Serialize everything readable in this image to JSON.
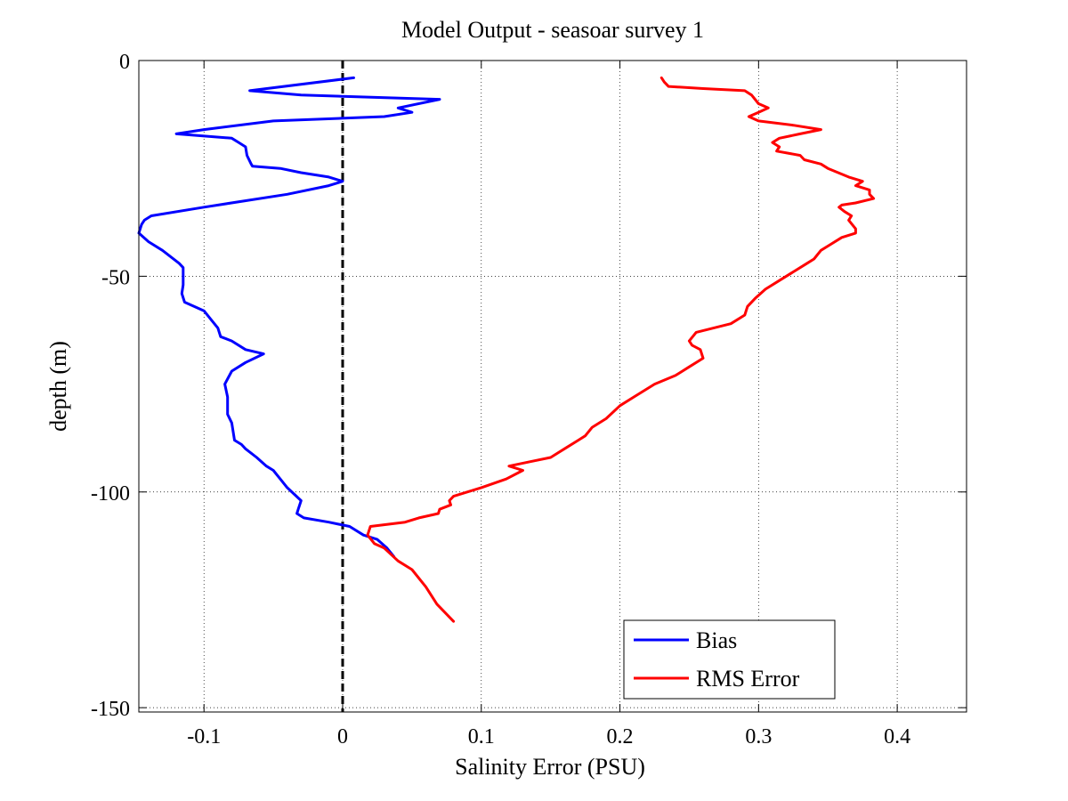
{
  "chart_data": {
    "type": "line",
    "title": "Model Output - seasoar survey 1",
    "xlabel": "Salinity Error  (PSU)",
    "ylabel": "depth (m)",
    "xlim": [
      -0.147,
      0.45
    ],
    "ylim": [
      -151,
      0
    ],
    "xticks": [
      -0.1,
      0,
      0.1,
      0.2,
      0.3,
      0.4
    ],
    "xtick_labels": [
      "-0.1",
      "0",
      "0.1",
      "0.2",
      "0.3",
      "0.4"
    ],
    "yticks": [
      0,
      -50,
      -100,
      -150
    ],
    "ytick_labels": [
      "0",
      "-50",
      "-100",
      "-150"
    ],
    "grid": true,
    "legend_position": "bottom-right",
    "zero_line": {
      "x": 0,
      "style": "dashed",
      "color": "#000000"
    },
    "series": [
      {
        "name": "Bias",
        "color": "#0000ff",
        "points": [
          [
            0.008,
            -4
          ],
          [
            -0.067,
            -7
          ],
          [
            -0.03,
            -8
          ],
          [
            0.07,
            -9
          ],
          [
            0.04,
            -11
          ],
          [
            0.05,
            -12
          ],
          [
            0.03,
            -13
          ],
          [
            -0.05,
            -14
          ],
          [
            -0.1,
            -16
          ],
          [
            -0.12,
            -17
          ],
          [
            -0.08,
            -18
          ],
          [
            -0.075,
            -19
          ],
          [
            -0.07,
            -20
          ],
          [
            -0.069,
            -22
          ],
          [
            -0.066,
            -24
          ],
          [
            -0.065,
            -24.5
          ],
          [
            -0.045,
            -25
          ],
          [
            -0.03,
            -26
          ],
          [
            -0.01,
            -27
          ],
          [
            0,
            -28
          ],
          [
            -0.01,
            -29
          ],
          [
            -0.04,
            -31
          ],
          [
            -0.1,
            -34
          ],
          [
            -0.138,
            -36
          ],
          [
            -0.143,
            -37
          ],
          [
            -0.145,
            -38
          ],
          [
            -0.147,
            -40
          ],
          [
            -0.14,
            -42
          ],
          [
            -0.13,
            -44
          ],
          [
            -0.118,
            -47
          ],
          [
            -0.115,
            -48
          ],
          [
            -0.115,
            -52
          ],
          [
            -0.116,
            -54
          ],
          [
            -0.114,
            -56
          ],
          [
            -0.1,
            -58
          ],
          [
            -0.095,
            -60
          ],
          [
            -0.09,
            -62
          ],
          [
            -0.088,
            -64
          ],
          [
            -0.08,
            -65
          ],
          [
            -0.07,
            -67
          ],
          [
            -0.057,
            -68
          ],
          [
            -0.07,
            -70
          ],
          [
            -0.08,
            -72
          ],
          [
            -0.085,
            -75
          ],
          [
            -0.083,
            -78
          ],
          [
            -0.083,
            -82
          ],
          [
            -0.08,
            -84
          ],
          [
            -0.078,
            -88
          ],
          [
            -0.073,
            -89
          ],
          [
            -0.07,
            -90
          ],
          [
            -0.062,
            -92
          ],
          [
            -0.055,
            -94
          ],
          [
            -0.05,
            -95
          ],
          [
            -0.045,
            -97
          ],
          [
            -0.04,
            -99
          ],
          [
            -0.03,
            -102
          ],
          [
            -0.032,
            -104
          ],
          [
            -0.033,
            -105
          ],
          [
            -0.028,
            -106
          ],
          [
            -0.01,
            -107
          ],
          [
            0.005,
            -108
          ],
          [
            0.015,
            -110
          ],
          [
            0.025,
            -111
          ],
          [
            0.032,
            -113
          ],
          [
            0.037,
            -115
          ]
        ]
      },
      {
        "name": "RMS Error",
        "color": "#ff0000",
        "points": [
          [
            0.23,
            -4
          ],
          [
            0.232,
            -5
          ],
          [
            0.235,
            -6
          ],
          [
            0.26,
            -6.5
          ],
          [
            0.29,
            -7
          ],
          [
            0.295,
            -8
          ],
          [
            0.3,
            -10
          ],
          [
            0.307,
            -11
          ],
          [
            0.3,
            -12
          ],
          [
            0.293,
            -13
          ],
          [
            0.3,
            -14
          ],
          [
            0.325,
            -15
          ],
          [
            0.345,
            -16
          ],
          [
            0.33,
            -17
          ],
          [
            0.315,
            -18
          ],
          [
            0.31,
            -19
          ],
          [
            0.315,
            -20
          ],
          [
            0.313,
            -21
          ],
          [
            0.33,
            -22
          ],
          [
            0.333,
            -23
          ],
          [
            0.345,
            -24
          ],
          [
            0.35,
            -25
          ],
          [
            0.365,
            -27
          ],
          [
            0.375,
            -28
          ],
          [
            0.37,
            -29
          ],
          [
            0.38,
            -30
          ],
          [
            0.38,
            -31
          ],
          [
            0.383,
            -32
          ],
          [
            0.37,
            -33
          ],
          [
            0.36,
            -33.5
          ],
          [
            0.358,
            -34
          ],
          [
            0.362,
            -35
          ],
          [
            0.367,
            -36
          ],
          [
            0.365,
            -37
          ],
          [
            0.37,
            -39
          ],
          [
            0.37,
            -40
          ],
          [
            0.36,
            -41
          ],
          [
            0.35,
            -43
          ],
          [
            0.345,
            -44
          ],
          [
            0.34,
            -46
          ],
          [
            0.335,
            -47
          ],
          [
            0.325,
            -49
          ],
          [
            0.315,
            -51
          ],
          [
            0.305,
            -53
          ],
          [
            0.298,
            -55
          ],
          [
            0.292,
            -57
          ],
          [
            0.29,
            -59
          ],
          [
            0.28,
            -61
          ],
          [
            0.255,
            -63
          ],
          [
            0.25,
            -65
          ],
          [
            0.252,
            -66
          ],
          [
            0.258,
            -67
          ],
          [
            0.26,
            -69
          ],
          [
            0.25,
            -71
          ],
          [
            0.24,
            -73
          ],
          [
            0.225,
            -75
          ],
          [
            0.21,
            -78
          ],
          [
            0.2,
            -80
          ],
          [
            0.19,
            -83
          ],
          [
            0.18,
            -85
          ],
          [
            0.175,
            -87
          ],
          [
            0.17,
            -88
          ],
          [
            0.16,
            -90
          ],
          [
            0.15,
            -92
          ],
          [
            0.135,
            -93
          ],
          [
            0.12,
            -94
          ],
          [
            0.13,
            -95
          ],
          [
            0.118,
            -97
          ],
          [
            0.1,
            -99
          ],
          [
            0.08,
            -101
          ],
          [
            0.077,
            -102
          ],
          [
            0.078,
            -103
          ],
          [
            0.07,
            -104
          ],
          [
            0.069,
            -105
          ],
          [
            0.055,
            -106
          ],
          [
            0.045,
            -107
          ],
          [
            0.02,
            -108
          ],
          [
            0.018,
            -110
          ],
          [
            0.023,
            -112
          ],
          [
            0.03,
            -113
          ],
          [
            0.04,
            -116
          ],
          [
            0.05,
            -118
          ],
          [
            0.06,
            -122
          ],
          [
            0.068,
            -126
          ],
          [
            0.08,
            -130
          ]
        ]
      }
    ]
  }
}
